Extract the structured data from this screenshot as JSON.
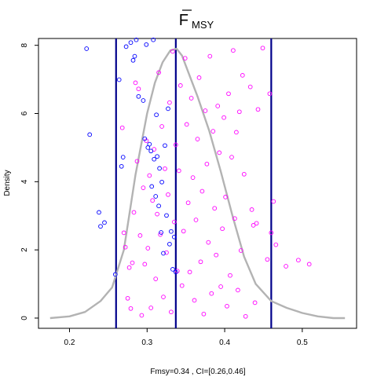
{
  "chart_data": {
    "type": "scatter",
    "title": "F",
    "title_subscript": "MSY",
    "xlabel": "Fmsy=0.34 , CI=[0.26,0.46]",
    "ylabel": "Density",
    "xlim": [
      0.16,
      0.57
    ],
    "ylim": [
      -0.3,
      8.2
    ],
    "x_ticks": [
      0.2,
      0.3,
      0.4,
      0.5
    ],
    "x_tick_labels": [
      "0.2",
      "0.3",
      "0.4",
      "0.5"
    ],
    "y_ticks": [
      0,
      2,
      4,
      6,
      8
    ],
    "y_tick_labels": [
      "0",
      "2",
      "4",
      "6",
      "8"
    ],
    "grid": false,
    "vlines": [
      0.26,
      0.337,
      0.46
    ],
    "vline_color": "#00008b",
    "density_color": "#b3b3b3",
    "density": {
      "x": [
        0.175,
        0.2,
        0.22,
        0.24,
        0.255,
        0.27,
        0.285,
        0.3,
        0.31,
        0.32,
        0.33,
        0.338,
        0.345,
        0.355,
        0.365,
        0.38,
        0.395,
        0.41,
        0.425,
        0.44,
        0.46,
        0.48,
        0.5,
        0.52,
        0.54,
        0.555
      ],
      "y": [
        0.0,
        0.05,
        0.18,
        0.5,
        0.9,
        2.0,
        4.2,
        6.0,
        6.9,
        7.5,
        7.85,
        7.9,
        7.7,
        7.1,
        6.5,
        5.5,
        4.3,
        3.0,
        1.8,
        1.0,
        0.5,
        0.3,
        0.15,
        0.05,
        0.0,
        0.0
      ]
    },
    "series": [
      {
        "color": "#ff00ff",
        "points": [
          [
            0.268,
            5.58
          ],
          [
            0.27,
            2.5
          ],
          [
            0.272,
            2.08
          ],
          [
            0.275,
            0.58
          ],
          [
            0.277,
            1.48
          ],
          [
            0.279,
            0.28
          ],
          [
            0.281,
            1.62
          ],
          [
            0.283,
            3.1
          ],
          [
            0.285,
            6.9
          ],
          [
            0.287,
            4.6
          ],
          [
            0.289,
            6.72
          ],
          [
            0.291,
            2.42
          ],
          [
            0.293,
            0.08
          ],
          [
            0.295,
            3.82
          ],
          [
            0.297,
            1.58
          ],
          [
            0.299,
            5.2
          ],
          [
            0.301,
            2.05
          ],
          [
            0.303,
            4.18
          ],
          [
            0.305,
            0.3
          ],
          [
            0.307,
            3.45
          ],
          [
            0.309,
            4.95
          ],
          [
            0.311,
            1.15
          ],
          [
            0.313,
            3.05
          ],
          [
            0.315,
            7.2
          ],
          [
            0.317,
            2.45
          ],
          [
            0.319,
            5.62
          ],
          [
            0.321,
            0.62
          ],
          [
            0.323,
            4.38
          ],
          [
            0.325,
            1.92
          ],
          [
            0.327,
            3.62
          ],
          [
            0.329,
            6.32
          ],
          [
            0.331,
            0.18
          ],
          [
            0.333,
            7.82
          ],
          [
            0.335,
            2.82
          ],
          [
            0.337,
            5.08
          ],
          [
            0.339,
            1.38
          ],
          [
            0.341,
            4.32
          ],
          [
            0.343,
            6.82
          ],
          [
            0.345,
            0.95
          ],
          [
            0.347,
            2.55
          ],
          [
            0.349,
            7.62
          ],
          [
            0.351,
            5.68
          ],
          [
            0.353,
            3.38
          ],
          [
            0.355,
            1.35
          ],
          [
            0.357,
            6.45
          ],
          [
            0.359,
            4.12
          ],
          [
            0.361,
            0.52
          ],
          [
            0.363,
            2.88
          ],
          [
            0.365,
            5.25
          ],
          [
            0.367,
            7.05
          ],
          [
            0.369,
            1.65
          ],
          [
            0.371,
            3.72
          ],
          [
            0.373,
            0.12
          ],
          [
            0.375,
            6.08
          ],
          [
            0.377,
            4.52
          ],
          [
            0.379,
            2.22
          ],
          [
            0.381,
            7.68
          ],
          [
            0.383,
            0.72
          ],
          [
            0.385,
            5.48
          ],
          [
            0.387,
            3.22
          ],
          [
            0.389,
            1.85
          ],
          [
            0.391,
            6.22
          ],
          [
            0.393,
            4.85
          ],
          [
            0.395,
            0.92
          ],
          [
            0.397,
            2.62
          ],
          [
            0.399,
            5.88
          ],
          [
            0.401,
            3.55
          ],
          [
            0.403,
            0.35
          ],
          [
            0.405,
            6.58
          ],
          [
            0.407,
            1.25
          ],
          [
            0.409,
            4.72
          ],
          [
            0.411,
            7.85
          ],
          [
            0.413,
            2.92
          ],
          [
            0.415,
            5.45
          ],
          [
            0.417,
            0.82
          ],
          [
            0.419,
            6.05
          ],
          [
            0.421,
            1.98
          ],
          [
            0.423,
            7.12
          ],
          [
            0.425,
            4.22
          ],
          [
            0.427,
            0.05
          ],
          [
            0.433,
            6.78
          ],
          [
            0.435,
            3.18
          ],
          [
            0.437,
            2.72
          ],
          [
            0.439,
            0.45
          ],
          [
            0.441,
            2.78
          ],
          [
            0.443,
            6.12
          ],
          [
            0.449,
            7.92
          ],
          [
            0.455,
            1.72
          ],
          [
            0.458,
            6.58
          ],
          [
            0.46,
            2.5
          ],
          [
            0.463,
            3.42
          ],
          [
            0.466,
            2.15
          ],
          [
            0.479,
            1.52
          ],
          [
            0.495,
            1.7
          ],
          [
            0.509,
            1.58
          ]
        ]
      },
      {
        "color": "#0000ff",
        "points": [
          [
            0.222,
            7.9
          ],
          [
            0.226,
            5.38
          ],
          [
            0.238,
            3.1
          ],
          [
            0.24,
            2.69
          ],
          [
            0.245,
            2.8
          ],
          [
            0.259,
            1.28
          ],
          [
            0.264,
            6.99
          ],
          [
            0.267,
            4.45
          ],
          [
            0.269,
            4.72
          ],
          [
            0.273,
            7.96
          ],
          [
            0.279,
            8.08
          ],
          [
            0.282,
            7.56
          ],
          [
            0.284,
            7.68
          ],
          [
            0.286,
            8.16
          ],
          [
            0.289,
            6.5
          ],
          [
            0.295,
            6.38
          ],
          [
            0.297,
            5.26
          ],
          [
            0.299,
            8.02
          ],
          [
            0.301,
            5.0
          ],
          [
            0.303,
            5.1
          ],
          [
            0.305,
            4.9
          ],
          [
            0.306,
            3.86
          ],
          [
            0.308,
            8.16
          ],
          [
            0.309,
            4.66
          ],
          [
            0.311,
            3.57
          ],
          [
            0.312,
            5.96
          ],
          [
            0.313,
            4.74
          ],
          [
            0.315,
            3.29
          ],
          [
            0.316,
            4.39
          ],
          [
            0.318,
            2.51
          ],
          [
            0.319,
            3.99
          ],
          [
            0.321,
            1.9
          ],
          [
            0.323,
            5.06
          ],
          [
            0.325,
            3.01
          ],
          [
            0.327,
            6.14
          ],
          [
            0.329,
            2.17
          ],
          [
            0.331,
            2.54
          ],
          [
            0.333,
            1.43
          ],
          [
            0.335,
            2.38
          ],
          [
            0.337,
            1.35
          ]
        ]
      }
    ]
  }
}
